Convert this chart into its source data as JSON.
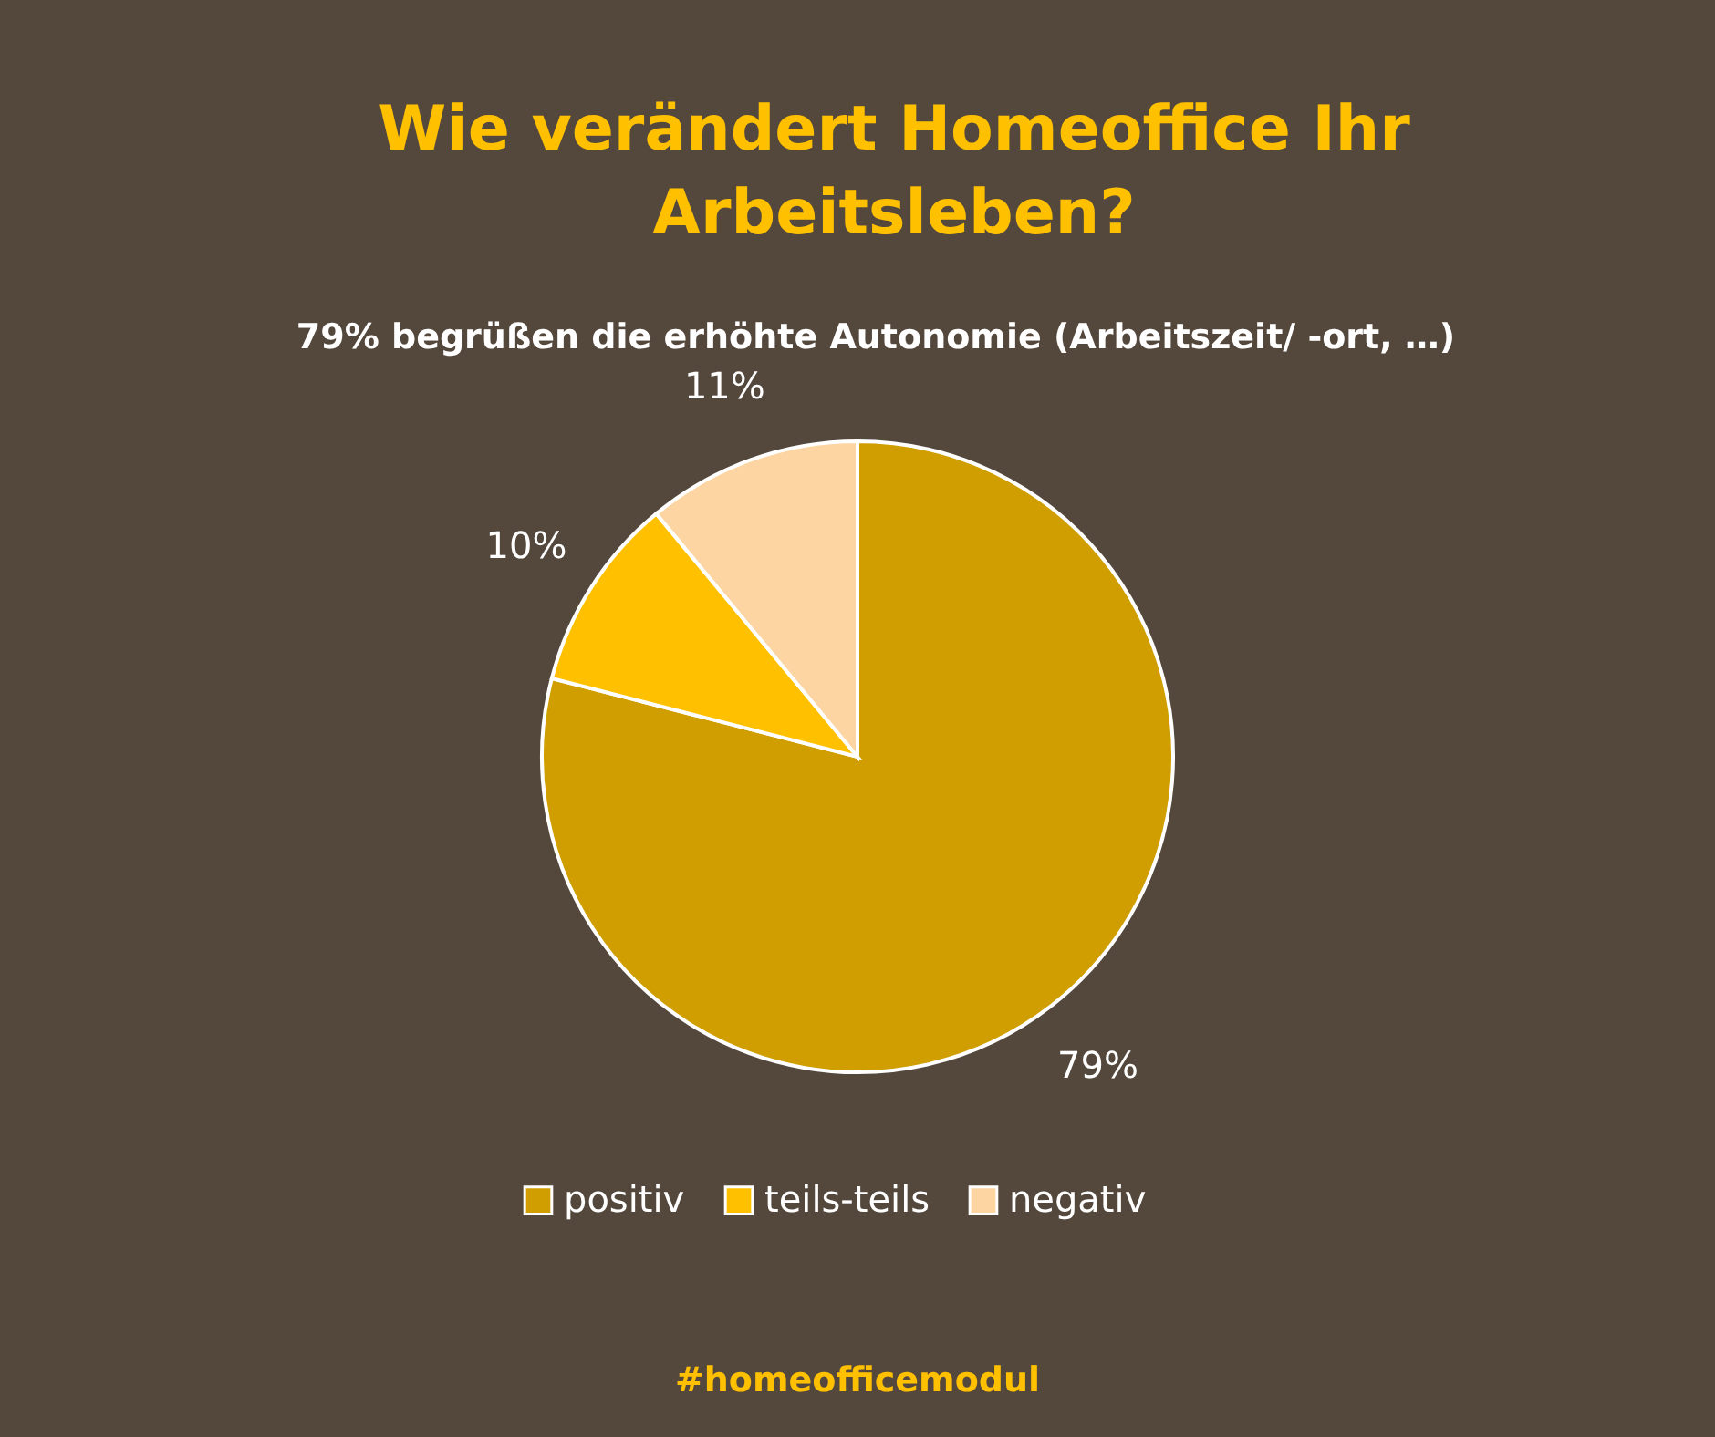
{
  "chart_data": {
    "type": "pie",
    "title": "Wie verändert Homeoffice Ihr Arbeitsleben?",
    "subtitle": "79% begrüßen die erhöhte Autonomie (Arbeitszeit/ -ort, …)",
    "categories": [
      "positiv",
      "teils-teils",
      "negativ"
    ],
    "values": [
      79,
      10,
      11
    ],
    "colors": [
      "#d09e00",
      "#ffc000",
      "#fdd5a3"
    ],
    "value_labels": [
      "79%",
      "10%",
      "11%"
    ],
    "legend": "bottom",
    "annotations": [
      "#homeofficemodul"
    ]
  }
}
